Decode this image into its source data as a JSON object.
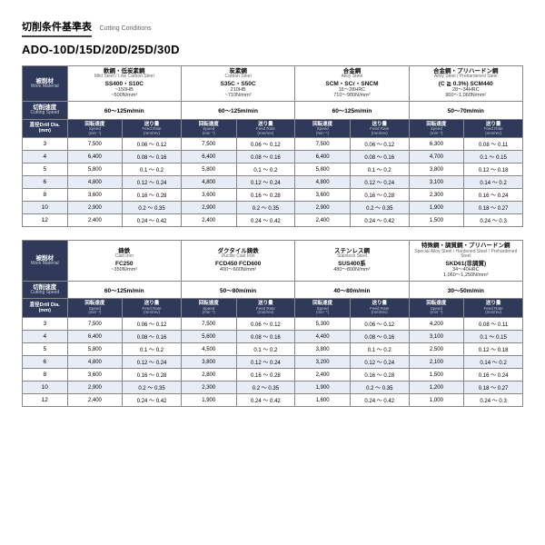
{
  "header": {
    "title_jp": "切削条件基準表",
    "title_en": "Cutting Conditions",
    "series": "ADO-10D/15D/20D/25D/30D"
  },
  "labels": {
    "work_material_jp": "被削材",
    "work_material_en": "Work Material",
    "cut_speed_jp": "切削速度",
    "cut_speed_en": "Cutting Speed",
    "dia_jp": "直径",
    "dia_en": "Drill Dia.",
    "dia_unit": "(mm)",
    "speed_jp": "回転速度",
    "speed_en": "Speed",
    "speed_unit": "(min⁻¹)",
    "feed_jp": "送り量",
    "feed_en": "Feed Rate",
    "feed_unit": "(mm/rev)"
  },
  "colors": {
    "header_bg": "#2f3a5a",
    "alt_row": "#e8ecf4",
    "border": "#888"
  },
  "block1": {
    "materials": [
      {
        "jp": "軟鋼・低炭素鋼",
        "en": "Mild Steel / Low Carbon Steel",
        "grade": "SS400・S10C",
        "spec1": "~150HB",
        "spec2": "~500N/mm²",
        "cut": "60～125m/min"
      },
      {
        "jp": "炭素鋼",
        "en": "Carbon Steel",
        "grade": "S35C・S50C",
        "spec1": "210HB",
        "spec2": "~710N/mm²",
        "cut": "60～125m/min"
      },
      {
        "jp": "合金鋼",
        "en": "Alloy Steel",
        "grade": "SCM・SCr・SNCM",
        "spec1": "16～28HRC",
        "spec2": "710～900N/mm²",
        "cut": "60～125m/min"
      },
      {
        "jp": "合金鋼・プリハードン鋼",
        "en": "Alloy Steel / Prehardened Steel",
        "grade": "(C ≧ 0.3%)   SCM440",
        "spec1": "28～34HRC",
        "spec2": "900～1,060N/mm²",
        "cut": "50～70m/min"
      }
    ],
    "diameters": [
      "3",
      "4",
      "5",
      "6",
      "8",
      "10",
      "12"
    ],
    "rows": [
      [
        [
          "7,500",
          "0.06 ～ 0.12"
        ],
        [
          "7,500",
          "0.06 ～ 0.12"
        ],
        [
          "7,500",
          "0.06 ～ 0.12"
        ],
        [
          "6,300",
          "0.08 ～ 0.11"
        ]
      ],
      [
        [
          "6,400",
          "0.08 ～ 0.16"
        ],
        [
          "6,400",
          "0.08 ～ 0.16"
        ],
        [
          "6,400",
          "0.08 ～ 0.16"
        ],
        [
          "4,700",
          "0.1  ～ 0.15"
        ]
      ],
      [
        [
          "5,800",
          "0.1  ～ 0.2"
        ],
        [
          "5,800",
          "0.1  ～ 0.2"
        ],
        [
          "5,800",
          "0.1  ～ 0.2"
        ],
        [
          "3,800",
          "0.12 ～ 0.18"
        ]
      ],
      [
        [
          "4,800",
          "0.12 ～ 0.24"
        ],
        [
          "4,800",
          "0.12 ～ 0.24"
        ],
        [
          "4,800",
          "0.12 ～ 0.24"
        ],
        [
          "3,100",
          "0.14 ～ 0.2"
        ]
      ],
      [
        [
          "3,600",
          "0.16 ～ 0.28"
        ],
        [
          "3,600",
          "0.16 ～ 0.28"
        ],
        [
          "3,600",
          "0.16 ～ 0.28"
        ],
        [
          "2,300",
          "0.16 ～ 0.24"
        ]
      ],
      [
        [
          "2,900",
          "0.2  ～ 0.35"
        ],
        [
          "2,900",
          "0.2  ～ 0.35"
        ],
        [
          "2,900",
          "0.2  ～ 0.35"
        ],
        [
          "1,900",
          "0.18 ～ 0.27"
        ]
      ],
      [
        [
          "2,400",
          "0.24 ～ 0.42"
        ],
        [
          "2,400",
          "0.24 ～ 0.42"
        ],
        [
          "2,400",
          "0.24 ～ 0.42"
        ],
        [
          "1,500",
          "0.24 ～ 0.3"
        ]
      ]
    ]
  },
  "block2": {
    "materials": [
      {
        "jp": "鋳鉄",
        "en": "Cast Iron",
        "grade": "FC250",
        "spec1": "",
        "spec2": "~350N/mm²",
        "cut": "60～125m/min"
      },
      {
        "jp": "ダクタイル鋳鉄",
        "en": "Ductile Cast Iron",
        "grade": "FCD450   FCD600",
        "spec1": "",
        "spec2": "400～600N/mm²",
        "cut": "50～80m/min"
      },
      {
        "jp": "ステンレス鋼",
        "en": "Stainless Steel",
        "grade": "SUS400系",
        "spec1": "",
        "spec2": "480～800N/mm²",
        "cut": "40～80m/min"
      },
      {
        "jp": "特殊鋼・調質鋼・プリハードン鋼",
        "en": "Special Alloy Steel / Hardened Steel / Prehardened Steel",
        "grade": "SKD61(非調質)",
        "spec1": "34～40HRC",
        "spec2": "1,060～1,250N/mm²",
        "cut": "30～50m/min"
      }
    ],
    "diameters": [
      "3",
      "4",
      "5",
      "6",
      "8",
      "10",
      "12"
    ],
    "rows": [
      [
        [
          "7,500",
          "0.06 ～ 0.12"
        ],
        [
          "7,500",
          "0.06 ～ 0.12"
        ],
        [
          "5,300",
          "0.06 ～ 0.12"
        ],
        [
          "4,200",
          "0.08 ～ 0.11"
        ]
      ],
      [
        [
          "6,400",
          "0.08 ～ 0.16"
        ],
        [
          "5,600",
          "0.08 ～ 0.16"
        ],
        [
          "4,400",
          "0.08 ～ 0.16"
        ],
        [
          "3,100",
          "0.1  ～ 0.15"
        ]
      ],
      [
        [
          "5,800",
          "0.1  ～ 0.2"
        ],
        [
          "4,500",
          "0.1  ～ 0.2"
        ],
        [
          "3,800",
          "0.1  ～ 0.2"
        ],
        [
          "2,500",
          "0.12 ～ 0.18"
        ]
      ],
      [
        [
          "4,800",
          "0.12 ～ 0.24"
        ],
        [
          "3,800",
          "0.12 ～ 0.24"
        ],
        [
          "3,200",
          "0.12 ～ 0.24"
        ],
        [
          "2,100",
          "0.14 ～ 0.2"
        ]
      ],
      [
        [
          "3,600",
          "0.16 ～ 0.28"
        ],
        [
          "2,800",
          "0.16 ～ 0.28"
        ],
        [
          "2,400",
          "0.16 ～ 0.28"
        ],
        [
          "1,500",
          "0.16 ～ 0.24"
        ]
      ],
      [
        [
          "2,900",
          "0.2  ～ 0.35"
        ],
        [
          "2,300",
          "0.2  ～ 0.35"
        ],
        [
          "1,900",
          "0.2  ～ 0.35"
        ],
        [
          "1,200",
          "0.18 ～ 0.27"
        ]
      ],
      [
        [
          "2,400",
          "0.24 ～ 0.42"
        ],
        [
          "1,900",
          "0.24 ～ 0.42"
        ],
        [
          "1,600",
          "0.24 ～ 0.42"
        ],
        [
          "1,000",
          "0.24 ～ 0.3"
        ]
      ]
    ]
  }
}
